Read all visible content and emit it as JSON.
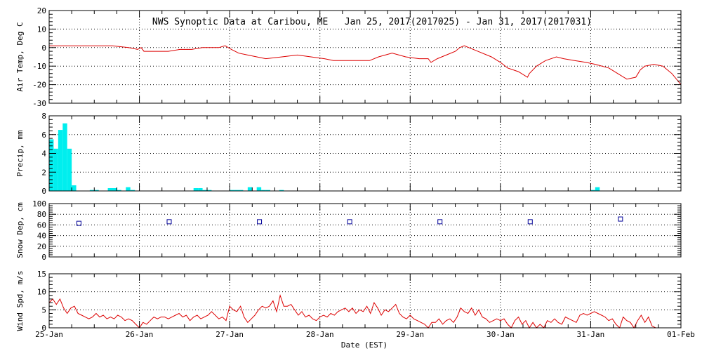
{
  "chart_data": {
    "title": "NWS Synoptic Data at Caribou, ME   Jan 25, 2017(2017025) - Jan 31, 2017(2017031)",
    "xlabel": "Date (EST)",
    "x_ticks": [
      "25-Jan",
      "26-Jan",
      "27-Jan",
      "28-Jan",
      "29-Jan",
      "30-Jan",
      "31-Jan",
      "01-Feb"
    ],
    "xlim": [
      "2017-01-25",
      "2017-02-01"
    ],
    "grid": true,
    "panels": [
      {
        "id": "air_temp",
        "type": "line",
        "ylabel": "Air Temp, Deg C",
        "ylim": [
          -30,
          20
        ],
        "y_ticks": [
          20,
          10,
          0,
          -10,
          -20,
          -30
        ],
        "color": "#dd0000",
        "series": [
          {
            "x": [
              0,
              0.3,
              0.7,
              0.88,
              0.98,
              1.02,
              1.05,
              1.2,
              1.32,
              1.45,
              1.58,
              1.7,
              1.8,
              1.88,
              1.95,
              2.02,
              2.06,
              2.1,
              2.2,
              2.3,
              2.4,
              2.58,
              2.75,
              2.9,
              3.05,
              3.15,
              3.28,
              3.4,
              3.55,
              3.65,
              3.8,
              3.95,
              4.1,
              4.2,
              4.23,
              4.3,
              4.4,
              4.5,
              4.55,
              4.6,
              4.65,
              4.75,
              4.9,
              5.0,
              5.08,
              5.2,
              5.3,
              5.32,
              5.4,
              5.5,
              5.62,
              5.7,
              5.82,
              5.95,
              6.05,
              6.2,
              6.3,
              6.4,
              6.5,
              6.55,
              6.6,
              6.7,
              6.8,
              6.9,
              6.95,
              7.0
            ],
            "values": [
              1,
              1,
              1,
              0,
              -1,
              0,
              -2,
              -2,
              -2,
              -1,
              -1,
              0,
              0,
              0,
              1,
              -1,
              -2,
              -3,
              -4,
              -5,
              -6,
              -5,
              -4,
              -5,
              -6,
              -7,
              -7,
              -7,
              -7,
              -5,
              -3,
              -5,
              -6,
              -6,
              -8,
              -6,
              -4,
              -2,
              0,
              1,
              0,
              -2,
              -5,
              -8,
              -11,
              -13,
              -16,
              -14,
              -10,
              -7,
              -5,
              -6,
              -7,
              -8,
              -9,
              -11,
              -14,
              -17,
              -16,
              -12,
              -10,
              -9,
              -10,
              -14,
              -17,
              -20
            ]
          }
        ]
      },
      {
        "id": "precip",
        "type": "bar",
        "ylabel": "Precip, mm",
        "ylim": [
          0,
          8
        ],
        "y_ticks": [
          8,
          6,
          4,
          2,
          0
        ],
        "color": "#00eeee",
        "bar_width_days": 0.05,
        "series": [
          {
            "x": [
              0.0,
              0.05,
              0.1,
              0.15,
              0.2,
              0.25,
              0.45,
              0.5,
              0.65,
              0.7,
              0.75,
              0.85,
              0.9,
              1.6,
              1.65,
              1.7,
              1.75,
              2.0,
              2.05,
              2.1,
              2.2,
              2.3,
              2.35,
              2.4,
              2.55,
              6.0,
              6.05
            ],
            "values": [
              5.5,
              4.5,
              6.5,
              7.2,
              4.5,
              0.6,
              0.1,
              0.1,
              0.3,
              0.3,
              0.1,
              0.4,
              0.1,
              0.3,
              0.3,
              0.1,
              0.1,
              0.1,
              0.1,
              0.1,
              0.4,
              0.4,
              0.1,
              0.1,
              0.1,
              0.1,
              0.4
            ]
          }
        ]
      },
      {
        "id": "snow_depth",
        "type": "scatter",
        "marker": "square",
        "ylabel": "Snow Dep, cm",
        "ylim": [
          0,
          100
        ],
        "y_ticks": [
          100,
          80,
          60,
          40,
          20,
          0
        ],
        "color": "#000099",
        "series": [
          {
            "x": [
              0.33,
              1.33,
              2.33,
              3.33,
              4.33,
              5.33,
              6.33
            ],
            "values": [
              63,
              66,
              66,
              66,
              66,
              66,
              71
            ]
          }
        ]
      },
      {
        "id": "wind_speed",
        "type": "line",
        "ylabel": "Wind Spd, m/s",
        "ylim": [
          0,
          15
        ],
        "y_ticks": [
          15,
          10,
          5,
          0
        ],
        "color": "#dd0000",
        "series": [
          {
            "x": [
              0.0,
              0.04,
              0.08,
              0.12,
              0.16,
              0.2,
              0.24,
              0.28,
              0.32,
              0.36,
              0.4,
              0.44,
              0.48,
              0.52,
              0.56,
              0.6,
              0.64,
              0.68,
              0.72,
              0.76,
              0.8,
              0.84,
              0.88,
              0.92,
              0.96,
              1.0,
              1.04,
              1.08,
              1.12,
              1.16,
              1.2,
              1.24,
              1.28,
              1.32,
              1.36,
              1.4,
              1.44,
              1.48,
              1.52,
              1.56,
              1.6,
              1.64,
              1.68,
              1.72,
              1.76,
              1.8,
              1.84,
              1.88,
              1.92,
              1.96,
              2.0,
              2.04,
              2.08,
              2.12,
              2.16,
              2.2,
              2.24,
              2.28,
              2.32,
              2.36,
              2.4,
              2.44,
              2.48,
              2.52,
              2.56,
              2.6,
              2.64,
              2.68,
              2.72,
              2.76,
              2.8,
              2.84,
              2.88,
              2.92,
              2.96,
              3.0,
              3.04,
              3.08,
              3.12,
              3.16,
              3.2,
              3.24,
              3.28,
              3.32,
              3.36,
              3.4,
              3.44,
              3.48,
              3.52,
              3.56,
              3.6,
              3.64,
              3.68,
              3.72,
              3.76,
              3.8,
              3.84,
              3.88,
              3.92,
              3.96,
              4.0,
              4.04,
              4.08,
              4.12,
              4.16,
              4.2,
              4.24,
              4.28,
              4.32,
              4.36,
              4.4,
              4.44,
              4.48,
              4.52,
              4.56,
              4.6,
              4.64,
              4.68,
              4.72,
              4.76,
              4.8,
              4.84,
              4.88,
              4.92,
              4.96,
              5.0,
              5.04,
              5.08,
              5.12,
              5.16,
              5.2,
              5.24,
              5.28,
              5.32,
              5.36,
              5.4,
              5.44,
              5.48,
              5.52,
              5.56,
              5.6,
              5.64,
              5.68,
              5.72,
              5.76,
              5.8,
              5.84,
              5.88,
              5.92,
              5.96,
              6.0,
              6.04,
              6.08,
              6.12,
              6.16,
              6.2,
              6.24,
              6.28,
              6.32,
              6.36,
              6.4,
              6.44,
              6.48,
              6.52,
              6.56,
              6.6,
              6.64,
              6.68,
              6.72
            ],
            "values": [
              7,
              8,
              6.5,
              8,
              5.5,
              4,
              5.5,
              6,
              4,
              3.5,
              3,
              2.5,
              3,
              4,
              3,
              3.5,
              2.5,
              3,
              2.5,
              3.5,
              3,
              2,
              2.5,
              2,
              1,
              0,
              1.5,
              1,
              2,
              3,
              2.5,
              3,
              3,
              2.5,
              3,
              3.5,
              4,
              3,
              3.5,
              2,
              3,
              3.5,
              2.5,
              3,
              3.5,
              4.5,
              3.5,
              2.5,
              3,
              2,
              6,
              5,
              4.5,
              6,
              3,
              1.5,
              2.5,
              3.5,
              5,
              6,
              5.5,
              6,
              7.5,
              4.5,
              9,
              6,
              6,
              6.5,
              5,
              3.5,
              4.5,
              3,
              3.5,
              2.5,
              2,
              3,
              3.5,
              3,
              4,
              3.5,
              4.5,
              5,
              5.5,
              4.5,
              5.5,
              4,
              5,
              4.5,
              6,
              4,
              7,
              5.5,
              3.5,
              5,
              4.5,
              5.5,
              6.5,
              4,
              3,
              2.5,
              3.5,
              2.5,
              2,
              1.5,
              1,
              0,
              1.5,
              1.5,
              2.5,
              1,
              2,
              2.5,
              1.5,
              3,
              5.5,
              4.5,
              4,
              5.5,
              3.5,
              5,
              3,
              2.5,
              1.5,
              2,
              2.5,
              2,
              2.5,
              1,
              0,
              2,
              3,
              1,
              2,
              0,
              1.5,
              0,
              1,
              0,
              2,
              1.5,
              2.5,
              1.5,
              1,
              3,
              2.5,
              2,
              1.5,
              3.5,
              4,
              3.5,
              4,
              4.5,
              4,
              3.5,
              3,
              2,
              2.5,
              1,
              0,
              3,
              2,
              1.5,
              0,
              2,
              3.5,
              1.5,
              3,
              0.5,
              0
            ]
          }
        ]
      }
    ]
  }
}
